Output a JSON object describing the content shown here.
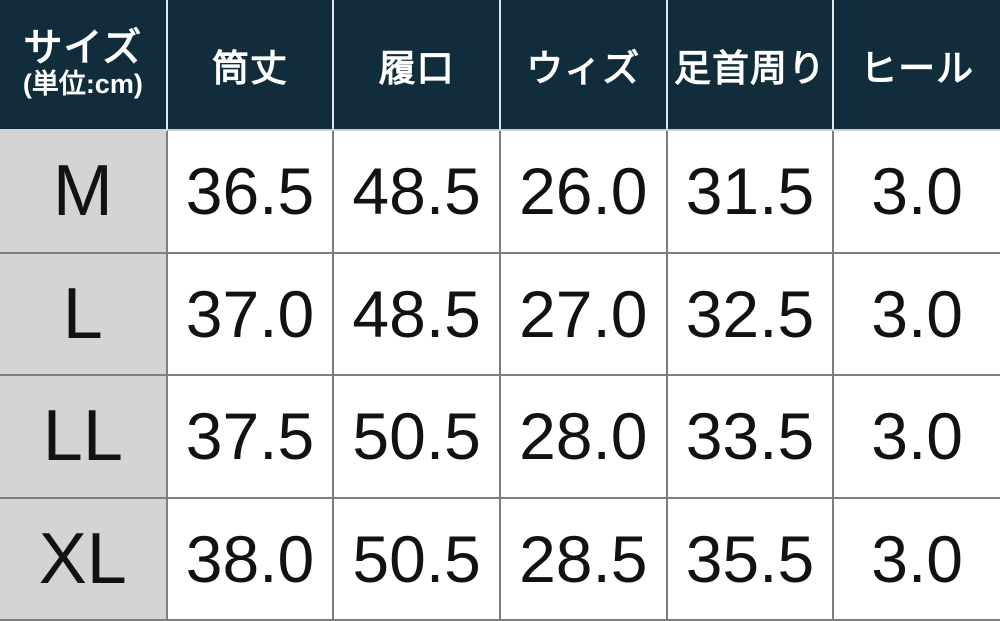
{
  "chart_data": {
    "type": "table",
    "header": {
      "size_column_label": "サイズ",
      "size_column_unit": "(単位:cm)",
      "measurement_columns": [
        "筒丈",
        "履口",
        "ウィズ",
        "足首周り",
        "ヒール"
      ]
    },
    "rows": [
      {
        "size": "M",
        "values": [
          "36.5",
          "48.5",
          "26.0",
          "31.5",
          "3.0"
        ]
      },
      {
        "size": "L",
        "values": [
          "37.0",
          "48.5",
          "27.0",
          "32.5",
          "3.0"
        ]
      },
      {
        "size": "LL",
        "values": [
          "37.5",
          "50.5",
          "28.0",
          "33.5",
          "3.0"
        ]
      },
      {
        "size": "XL",
        "values": [
          "38.0",
          "50.5",
          "28.5",
          "35.5",
          "3.0"
        ]
      }
    ],
    "layout": {
      "grid": true,
      "header_position": "top",
      "row_label_column": "left"
    }
  },
  "colors": {
    "header_bg": "#112c3a",
    "header_text": "#ffffff",
    "size_col_bg": "#d4d4d4",
    "cell_bg": "#ffffff",
    "grid_line": "#7e7e7e",
    "header_divider": "#dde6ea",
    "body_text": "#121212"
  }
}
